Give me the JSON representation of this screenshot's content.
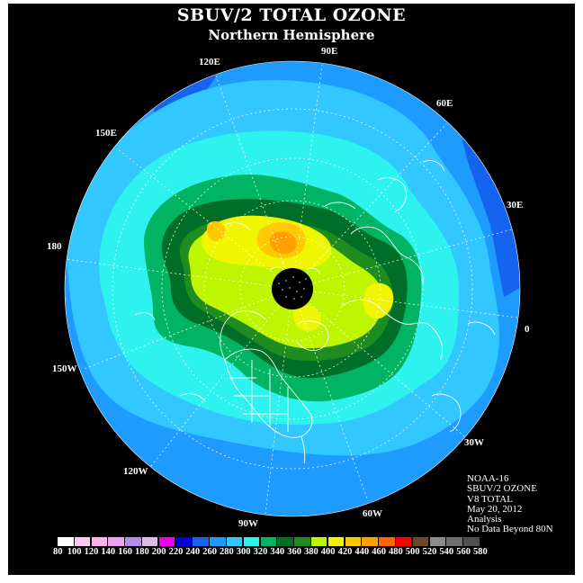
{
  "header": {
    "title": "SBUV/2 TOTAL OZONE",
    "subtitle": "Northern Hemisphere"
  },
  "longitude_labels": [
    "90E",
    "60E",
    "30E",
    "0",
    "30W",
    "60W",
    "90W",
    "120W",
    "150W",
    "180",
    "150E",
    "120E"
  ],
  "info": {
    "satellite": "NOAA-16",
    "instrument": "SBUV/2 OZONE",
    "product": "V8 TOTAL",
    "date": "May 20, 2012",
    "type": "Analysis",
    "note": "No Data Beyond 80N"
  },
  "colorbar": {
    "ticks": [
      "80",
      "100",
      "120",
      "140",
      "160",
      "180",
      "200",
      "220",
      "240",
      "260",
      "280",
      "300",
      "320",
      "340",
      "360",
      "380",
      "400",
      "420",
      "440",
      "460",
      "480",
      "500",
      "520",
      "540",
      "560",
      "580"
    ],
    "colors": [
      "#ffffff",
      "#ffc8f0",
      "#f8b4e8",
      "#f0a0f0",
      "#b48ce6",
      "#dcbce6",
      "#f000f0",
      "#0000dc",
      "#1464f0",
      "#1e9bff",
      "#32c8ff",
      "#2ef2ee",
      "#00b464",
      "#006e28",
      "#1e8c1e",
      "#bef500",
      "#f0f500",
      "#ffc800",
      "#ffa000",
      "#ff6400",
      "#ff0000",
      "#6e4628",
      "#8c8c8c",
      "#6e6e6e",
      "#505050"
    ]
  },
  "colors": {
    "background": "#000000",
    "coastline": "#ffffff",
    "pole_no_data": "#000000"
  }
}
